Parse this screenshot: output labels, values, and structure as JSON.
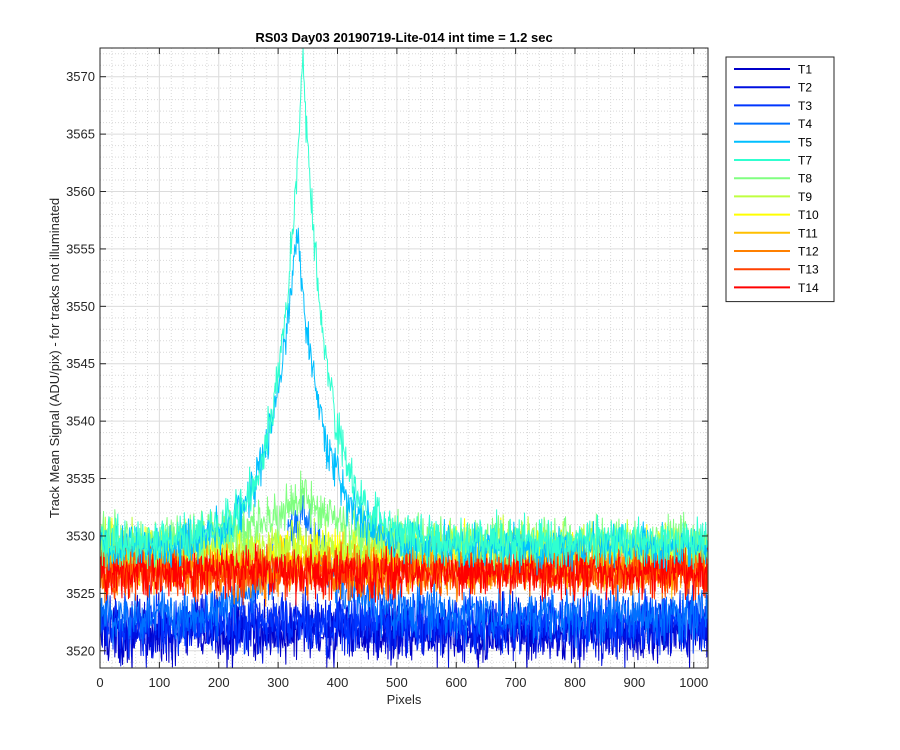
{
  "chart_data": {
    "type": "line",
    "title": "RS03 Day03 20190719-Lite-014 int time = 1.2 sec",
    "xlabel": "Pixels",
    "ylabel": "Track Mean Signal (ADU/pix) - for tracks not illuminated",
    "xlim": [
      0,
      1024
    ],
    "ylim": [
      3518.5,
      3572.5
    ],
    "xticks": [
      0,
      100,
      200,
      300,
      400,
      500,
      600,
      700,
      800,
      900,
      1000
    ],
    "yticks": [
      3520,
      3525,
      3530,
      3535,
      3540,
      3545,
      3550,
      3555,
      3560,
      3565,
      3570
    ],
    "grid": true,
    "minor_grid": true,
    "legend_position": "outside-right-top",
    "series": [
      {
        "name": "T1",
        "color": "#0000c8",
        "baseline": 3521.5,
        "noise": 1.6,
        "peak": 0,
        "peak_center": 340,
        "peak_width": 60
      },
      {
        "name": "T2",
        "color": "#0010e0",
        "baseline": 3522.0,
        "noise": 1.6,
        "peak": 0,
        "peak_center": 340,
        "peak_width": 60
      },
      {
        "name": "T3",
        "color": "#0036ff",
        "baseline": 3522.5,
        "noise": 1.6,
        "peak": 0,
        "peak_center": 340,
        "peak_width": 60
      },
      {
        "name": "T4",
        "color": "#0070ff",
        "baseline": 3523.0,
        "noise": 1.5,
        "peak": 10,
        "peak_center": 340,
        "peak_width": 55
      },
      {
        "name": "T5",
        "color": "#00bfff",
        "baseline": 3529.0,
        "noise": 1.2,
        "peak": 28,
        "peak_center": 332,
        "peak_width": 45
      },
      {
        "name": "T7",
        "color": "#30ffd0",
        "baseline": 3529.5,
        "noise": 1.2,
        "peak": 42,
        "peak_center": 342,
        "peak_width": 40
      },
      {
        "name": "T8",
        "color": "#80ff80",
        "baseline": 3529.5,
        "noise": 1.3,
        "peak": 4,
        "peak_center": 340,
        "peak_width": 80
      },
      {
        "name": "T9",
        "color": "#bfff40",
        "baseline": 3529.0,
        "noise": 1.3,
        "peak": 0,
        "peak_center": 340,
        "peak_width": 60
      },
      {
        "name": "T10",
        "color": "#ffff00",
        "baseline": 3528.5,
        "noise": 1.4,
        "peak": 0,
        "peak_center": 340,
        "peak_width": 60
      },
      {
        "name": "T11",
        "color": "#ffbf00",
        "baseline": 3527.5,
        "noise": 1.4,
        "peak": 0,
        "peak_center": 340,
        "peak_width": 60
      },
      {
        "name": "T12",
        "color": "#ff8000",
        "baseline": 3527.0,
        "noise": 1.4,
        "peak": 0,
        "peak_center": 340,
        "peak_width": 60
      },
      {
        "name": "T13",
        "color": "#ff4000",
        "baseline": 3526.8,
        "noise": 1.3,
        "peak": 0,
        "peak_center": 340,
        "peak_width": 60
      },
      {
        "name": "T14",
        "color": "#ff0000",
        "baseline": 3526.8,
        "noise": 1.3,
        "peak": 0,
        "peak_center": 340,
        "peak_width": 60
      }
    ]
  }
}
